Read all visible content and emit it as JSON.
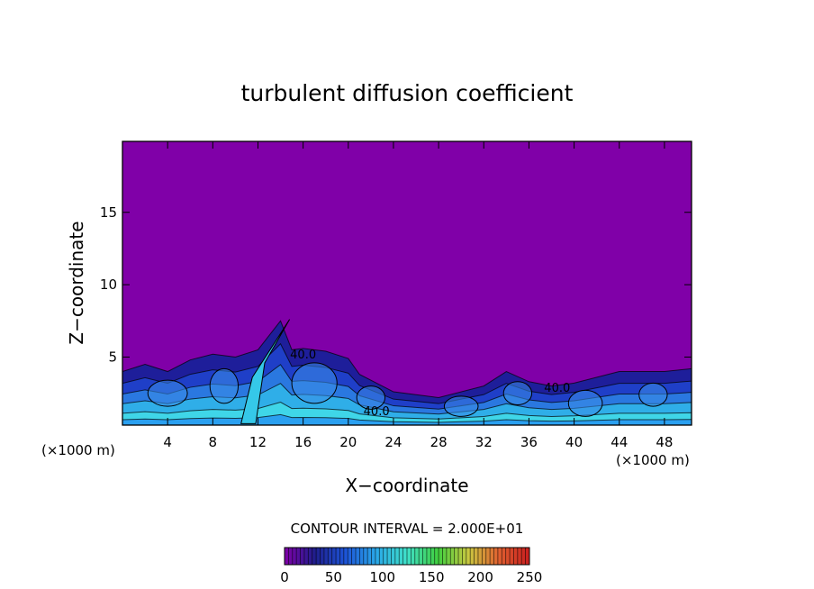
{
  "chart_data": {
    "type": "heatmap",
    "title": "turbulent diffusion coefficient",
    "xlabel": "X−coordinate",
    "ylabel": "Z−coordinate",
    "x_unit_left": "(×1000 m)",
    "x_unit_right": "(×1000 m)",
    "xlim": [
      0,
      50.4
    ],
    "ylim": [
      0.3,
      19.9
    ],
    "x_ticks": [
      4,
      8,
      12,
      16,
      20,
      24,
      28,
      32,
      36,
      40,
      44,
      48
    ],
    "x_tick_labels": [
      "4",
      "8",
      "12",
      "16",
      "20",
      "24",
      "28",
      "32",
      "36",
      "40",
      "44",
      "48"
    ],
    "y_ticks": [
      5,
      10,
      15
    ],
    "y_tick_labels": [
      "5",
      "10",
      "15"
    ],
    "background_value": 0,
    "field_description_values": {
      "background_color": "#8000a8"
    },
    "contour_labels": [
      {
        "x": 16.0,
        "y": 4.9,
        "text": "40.0"
      },
      {
        "x": 22.5,
        "y": 1.0,
        "text": "40.0"
      },
      {
        "x": 38.5,
        "y": 2.6,
        "text": "40.0"
      }
    ],
    "contour_interval_text": "CONTOUR INTERVAL = 2.000E+01",
    "colorbar": {
      "min": 0,
      "max": 250,
      "tick_values": [
        0,
        50,
        100,
        150,
        200,
        250
      ],
      "tick_labels": [
        "0",
        "50",
        "100",
        "150",
        "200",
        "250"
      ],
      "stops": [
        "#8000a8",
        "#1e1e8c",
        "#1d55d8",
        "#2aa8e8",
        "#3fe0c8",
        "#40d040",
        "#c8c840",
        "#e06030",
        "#c81e1e"
      ]
    },
    "boundary_layer_top_km": [
      [
        0,
        4.0
      ],
      [
        2,
        4.5
      ],
      [
        4,
        4.0
      ],
      [
        6,
        4.8
      ],
      [
        8,
        5.2
      ],
      [
        10,
        5.0
      ],
      [
        12,
        5.5
      ],
      [
        14,
        7.5
      ],
      [
        15,
        5.5
      ],
      [
        16,
        5.6
      ],
      [
        18,
        5.4
      ],
      [
        20,
        4.9
      ],
      [
        21,
        3.8
      ],
      [
        24,
        2.6
      ],
      [
        28,
        2.2
      ],
      [
        32,
        3.0
      ],
      [
        34,
        4.0
      ],
      [
        36,
        3.3
      ],
      [
        38,
        3.0
      ],
      [
        40,
        3.2
      ],
      [
        44,
        4.0
      ],
      [
        48,
        4.0
      ],
      [
        50.4,
        4.2
      ]
    ]
  }
}
